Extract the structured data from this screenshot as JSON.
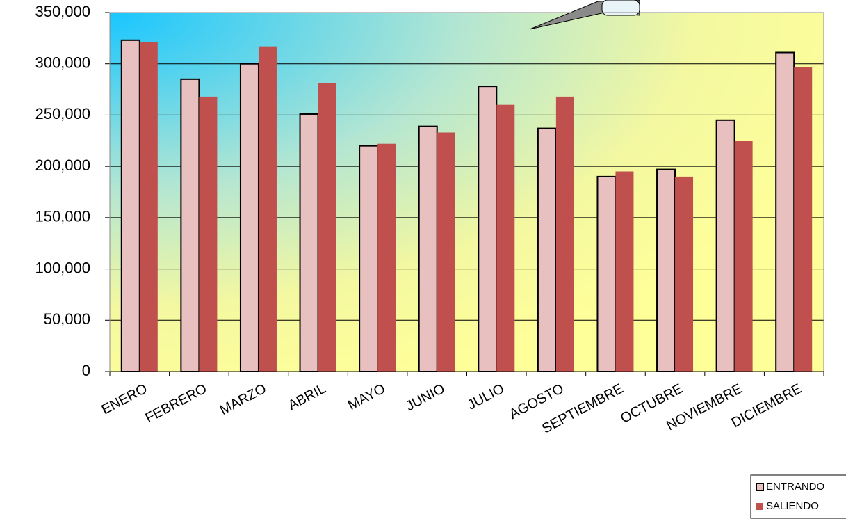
{
  "chart_data": {
    "type": "bar",
    "categories": [
      "ENERO",
      "FEBRERO",
      "MARZO",
      "ABRIL",
      "MAYO",
      "JUNIO",
      "JULIO",
      "AGOSTO",
      "SEPTIEMBRE",
      "OCTUBRE",
      "NOVIEMBRE",
      "DICIEMBRE"
    ],
    "series": [
      {
        "name": "ENTRANDO",
        "color": "#e8c0c0",
        "values": [
          323000,
          285000,
          300000,
          251000,
          220000,
          239000,
          278000,
          237000,
          190000,
          197000,
          245000,
          311000
        ]
      },
      {
        "name": "SALIENDO",
        "color": "#c0504d",
        "values": [
          321000,
          268000,
          317000,
          281000,
          222000,
          233000,
          260000,
          268000,
          195000,
          190000,
          225000,
          297000
        ]
      }
    ],
    "ylim": [
      0,
      350000
    ],
    "yticks": [
      0,
      {
        "value": 50000,
        "label": "50,000"
      },
      {
        "value": 100000,
        "label": "100,000"
      },
      {
        "value": 150000,
        "label": "150,000"
      },
      {
        "value": 200000,
        "label": "200,000"
      },
      {
        "value": 250000,
        "label": "250,000"
      },
      {
        "value": 300000,
        "label": "300,000"
      },
      {
        "value": 350000,
        "label": "350,000"
      }
    ],
    "grid": true
  }
}
